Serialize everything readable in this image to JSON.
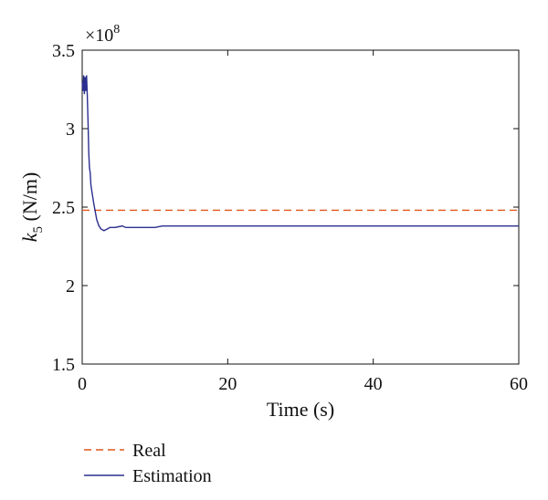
{
  "chart_data": {
    "type": "line",
    "title": "",
    "xlabel": "Time (s)",
    "ylabel_main": "k",
    "ylabel_sub": "5",
    "ylabel_unit": " (N/m)",
    "multiplier_base": "×10",
    "multiplier_exp": "8",
    "xlim": [
      0,
      60
    ],
    "ylim": [
      1.5,
      3.5
    ],
    "xticks": [
      0,
      20,
      40,
      60
    ],
    "xtick_labels": [
      "0",
      "20",
      "40",
      "60"
    ],
    "yticks": [
      1.5,
      2,
      2.5,
      3,
      3.5
    ],
    "ytick_labels": [
      "1.5",
      "2",
      "2.5",
      "3",
      "3.5"
    ],
    "grid": false,
    "legend_position": "bottom-left-outside",
    "series": [
      {
        "name": "Real",
        "color": "#e2561b",
        "dash": "dashed",
        "x": [
          0,
          60
        ],
        "y": [
          2.48,
          2.48
        ]
      },
      {
        "name": "Estimation",
        "color": "#2b2f8e",
        "dash": "solid",
        "x": [
          0,
          0.1,
          0.2,
          0.3,
          0.4,
          0.5,
          0.6,
          0.7,
          0.8,
          0.9,
          1.0,
          1.1,
          1.2,
          1.4,
          1.6,
          1.8,
          2.0,
          2.3,
          2.6,
          3.0,
          3.4,
          3.8,
          4.5,
          5.5,
          6.0,
          7.0,
          8.0,
          9.0,
          10.0,
          11.0,
          15.0,
          20.0,
          30.0,
          40.0,
          50.0,
          60.0
        ],
        "y": [
          3.3,
          3.24,
          3.34,
          3.22,
          3.33,
          3.24,
          3.34,
          3.21,
          3.05,
          2.85,
          2.75,
          2.72,
          2.64,
          2.58,
          2.52,
          2.47,
          2.42,
          2.38,
          2.36,
          2.35,
          2.36,
          2.37,
          2.37,
          2.38,
          2.37,
          2.37,
          2.37,
          2.37,
          2.37,
          2.38,
          2.38,
          2.38,
          2.38,
          2.38,
          2.38,
          2.38
        ]
      }
    ]
  }
}
